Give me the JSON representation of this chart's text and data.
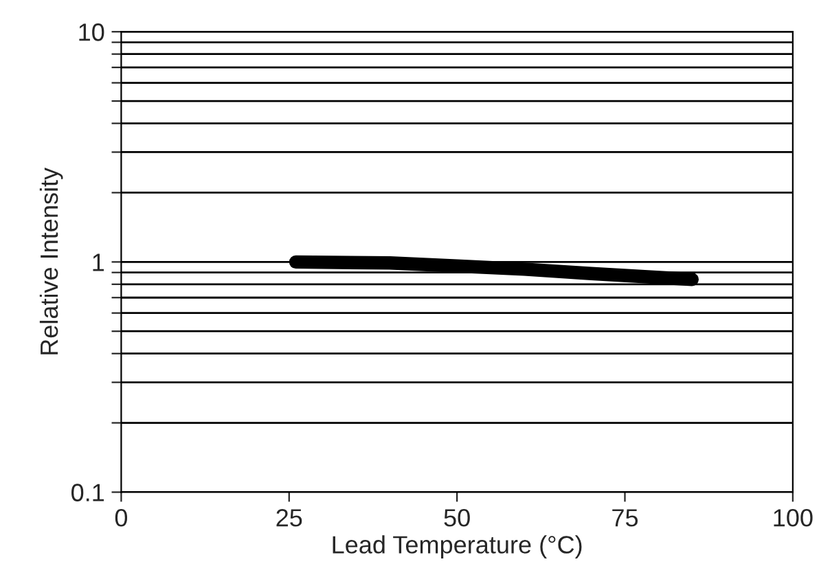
{
  "chart_data": {
    "type": "line",
    "xlabel": "Lead Temperature (°C)",
    "ylabel": "Relative Intensity",
    "x": [
      26,
      40,
      50,
      60,
      70,
      85
    ],
    "series": [
      {
        "color": "#000000",
        "values": [
          1.0,
          0.99,
          0.96,
          0.93,
          0.89,
          0.84
        ]
      }
    ],
    "xlim": [
      0,
      100
    ],
    "xticks": [
      0,
      25,
      50,
      75,
      100
    ],
    "ylim": [
      0.1,
      10
    ],
    "log": true,
    "yticks": [
      {
        "value": 0.1,
        "label": "0.1"
      },
      {
        "value": 0.2,
        "label": null
      },
      {
        "value": 0.3,
        "label": null
      },
      {
        "value": 0.4,
        "label": null
      },
      {
        "value": 0.5,
        "label": null
      },
      {
        "value": 0.6,
        "label": null
      },
      {
        "value": 0.7,
        "label": null
      },
      {
        "value": 0.8,
        "label": null
      },
      {
        "value": 0.9,
        "label": null
      },
      {
        "value": 1,
        "label": "1"
      },
      {
        "value": 2,
        "label": null
      },
      {
        "value": 3,
        "label": null
      },
      {
        "value": 4,
        "label": null
      },
      {
        "value": 5,
        "label": null
      },
      {
        "value": 6,
        "label": null
      },
      {
        "value": 7,
        "label": null
      },
      {
        "value": 8,
        "label": null
      },
      {
        "value": 9,
        "label": null
      },
      {
        "value": 10,
        "label": "10"
      }
    ],
    "grid": "y",
    "marker": "none",
    "line_style": "solid",
    "legend": false
  }
}
